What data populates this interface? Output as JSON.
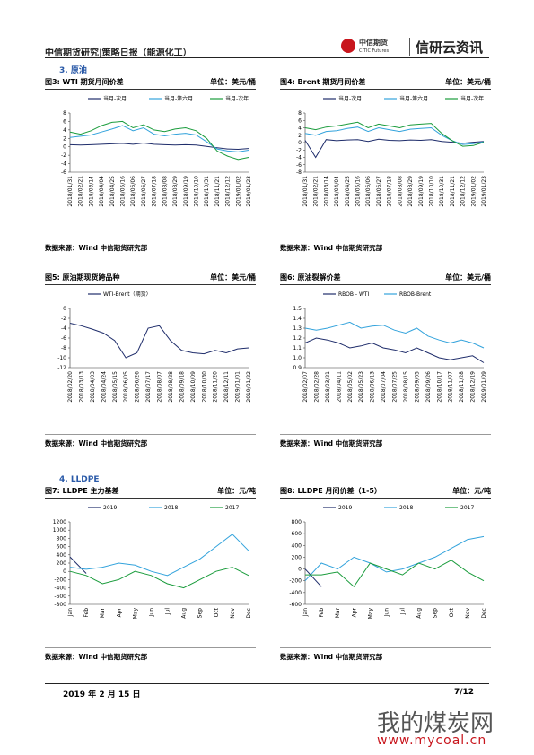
{
  "header": {
    "title": "中信期货研究|策略日报（能源化工）",
    "logo_cn": "中信期货",
    "logo_en": "CITIC Futures",
    "brand": "信研云资讯"
  },
  "sections": [
    "3. 原油",
    "4. LLDPE"
  ],
  "chart_data": [
    {
      "type": "line",
      "title": "图3: WTI 期货月间价差",
      "unit": "单位：美元/桶",
      "source": "数据来源：Wind 中信期货研究部",
      "categories": [
        "2018/01/31",
        "2018/02/21",
        "2018/03/14",
        "2018/04/04",
        "2018/04/25",
        "2018/05/16",
        "2018/06/06",
        "2018/06/27",
        "2018/07/18",
        "2018/08/08",
        "2018/08/29",
        "2018/09/19",
        "2018/10/10",
        "2018/10/31",
        "2018/11/21",
        "2018/12/12",
        "2019/01/02",
        "2019/01/23"
      ],
      "series": [
        {
          "name": "当月-次月",
          "color": "#1f2d6b",
          "values": [
            0.5,
            0.4,
            0.5,
            0.6,
            0.7,
            0.8,
            0.6,
            0.9,
            0.6,
            0.5,
            0.4,
            0.5,
            0.4,
            0.1,
            -0.2,
            -0.5,
            -0.6,
            -0.4
          ]
        },
        {
          "name": "当月-第六月",
          "color": "#33a3dc",
          "values": [
            2.2,
            2.5,
            2.8,
            3.5,
            4.2,
            5.0,
            3.8,
            4.5,
            3.0,
            2.6,
            3.0,
            3.2,
            2.8,
            1.2,
            -0.5,
            -1.0,
            -1.2,
            -0.8
          ]
        },
        {
          "name": "当月-次年",
          "color": "#1a9c3c",
          "values": [
            3.5,
            3.0,
            3.8,
            5.0,
            5.8,
            6.0,
            4.5,
            5.2,
            4.0,
            3.6,
            4.2,
            4.5,
            3.8,
            2.0,
            -1.0,
            -2.2,
            -3.0,
            -2.5
          ]
        }
      ],
      "ylim": [
        -6,
        8
      ],
      "yticks": [
        -6,
        -4,
        -2,
        0,
        2,
        4,
        6,
        8
      ]
    },
    {
      "type": "line",
      "title": "图4: Brent 期货月间价差",
      "unit": "单位：美元/桶",
      "source": "数据来源：Wind 中信期货研究部",
      "categories": [
        "2018/01/31",
        "2018/02/21",
        "2018/03/14",
        "2018/04/04",
        "2018/04/25",
        "2018/05/16",
        "2018/06/06",
        "2018/06/27",
        "2018/07/18",
        "2018/08/08",
        "2018/08/29",
        "2018/09/19",
        "2018/10/10",
        "2018/10/31",
        "2018/11/21",
        "2018/12/12",
        "2019/01/02",
        "2019/01/23"
      ],
      "series": [
        {
          "name": "当月-次月",
          "color": "#1f2d6b",
          "values": [
            0.6,
            -4.0,
            0.8,
            0.5,
            0.7,
            0.8,
            0.3,
            0.9,
            0.6,
            0.5,
            0.7,
            0.6,
            0.8,
            0.3,
            0.1,
            -0.2,
            0.1,
            0.3
          ]
        },
        {
          "name": "当月-第六月",
          "color": "#33a3dc",
          "values": [
            2.5,
            2.0,
            3.0,
            3.2,
            3.8,
            4.2,
            3.0,
            4.0,
            3.5,
            3.0,
            3.6,
            3.8,
            4.0,
            2.0,
            0.5,
            -0.5,
            -0.3,
            0.2
          ]
        },
        {
          "name": "当月-次年",
          "color": "#1a9c3c",
          "values": [
            4.0,
            3.5,
            4.2,
            4.5,
            5.0,
            5.5,
            4.0,
            5.0,
            4.5,
            4.0,
            4.8,
            5.0,
            5.2,
            2.5,
            0.5,
            -1.0,
            -0.8,
            0.1
          ]
        }
      ],
      "ylim": [
        -8,
        8
      ],
      "yticks": [
        -8,
        -6,
        -4,
        -2,
        0,
        2,
        4,
        6,
        8
      ]
    },
    {
      "type": "line",
      "title": "图5: 原油期现货跨品种",
      "unit": "单位：美元/桶",
      "source": "数据来源：Wind 中信期货研究部",
      "categories": [
        "2018/02/20",
        "2018/03/13",
        "2018/04/03",
        "2018/04/24",
        "2018/05/15",
        "2018/06/05",
        "2018/06/26",
        "2018/07/17",
        "2018/08/07",
        "2018/08/28",
        "2018/09/18",
        "2018/10/09",
        "2018/10/30",
        "2018/11/20",
        "2018/12/11",
        "2019/01/01",
        "2019/01/22"
      ],
      "series": [
        {
          "name": "WTI-Brent（期货）",
          "color": "#1f2d6b",
          "values": [
            -3,
            -3.5,
            -4.2,
            -5,
            -6.5,
            -10,
            -9,
            -4,
            -3.5,
            -6.5,
            -8.5,
            -9,
            -9.2,
            -8.5,
            -9,
            -8.2,
            -8
          ]
        }
      ],
      "ylim": [
        -12,
        0
      ],
      "yticks": [
        -12,
        -10,
        -8,
        -6,
        -4,
        -2,
        0
      ]
    },
    {
      "type": "line",
      "title": "图6: 原油裂解价差",
      "unit": "单位：美元/桶",
      "source": "数据来源：Wind 中信期货研究部",
      "categories": [
        "2018/02/07",
        "2018/02/28",
        "2018/03/21",
        "2018/04/11",
        "2018/05/02",
        "2018/05/23",
        "2018/06/13",
        "2018/07/04",
        "2018/07/25",
        "2018/08/15",
        "2018/09/05",
        "2018/09/26",
        "2018/10/17",
        "2018/11/07",
        "2018/11/28",
        "2018/12/19",
        "2019/01/09"
      ],
      "series": [
        {
          "name": "RBOB - WTI",
          "color": "#1f2d6b",
          "values": [
            1.15,
            1.2,
            1.18,
            1.15,
            1.1,
            1.12,
            1.15,
            1.1,
            1.08,
            1.05,
            1.1,
            1.05,
            1.0,
            0.98,
            1.0,
            1.02,
            0.95
          ]
        },
        {
          "name": "RBOB-Brent",
          "color": "#33a3dc",
          "values": [
            1.3,
            1.28,
            1.3,
            1.33,
            1.36,
            1.3,
            1.32,
            1.33,
            1.28,
            1.25,
            1.3,
            1.22,
            1.18,
            1.15,
            1.18,
            1.15,
            1.1
          ]
        }
      ],
      "ylim": [
        0.9,
        1.5
      ],
      "yticks": [
        0.9,
        {
          "value": 1,
          "label": "1.0"
        },
        1.1,
        1.2,
        1.3,
        1.4,
        1.5
      ]
    },
    {
      "type": "line",
      "title": "图7: LLDPE 主力基差",
      "unit": "单位：元/吨",
      "source": "数据来源：Wind 中信期货研究部",
      "categories": [
        "Jan",
        "Feb",
        "Mar",
        "Apr",
        "May",
        "Jun",
        "Jul",
        "Aug",
        "Sep",
        "Oct",
        "Nov",
        "Dec"
      ],
      "series": [
        {
          "name": "2019",
          "color": "#1f2d6b",
          "values": [
            350,
            -50,
            null,
            null,
            null,
            null,
            null,
            null,
            null,
            null,
            null,
            null
          ]
        },
        {
          "name": "2018",
          "color": "#33a3dc",
          "values": [
            100,
            50,
            100,
            200,
            150,
            0,
            -100,
            100,
            300,
            600,
            900,
            500
          ]
        },
        {
          "name": "2017",
          "color": "#1a9c3c",
          "values": [
            0,
            -100,
            -300,
            -200,
            0,
            -100,
            -300,
            -400,
            -200,
            0,
            100,
            -100
          ]
        }
      ],
      "ylim": [
        -800,
        1200
      ],
      "yticks": [
        -800,
        -600,
        -400,
        -200,
        0,
        200,
        400,
        600,
        800,
        1000,
        1200
      ]
    },
    {
      "type": "line",
      "title": "图8: LLDPE 月间价差（1-5）",
      "unit": "单位：元/吨",
      "source": "数据来源：Wind 中信期货研究部",
      "categories": [
        "Jan",
        "Feb",
        "Mar",
        "Apr",
        "May",
        "Jun",
        "Jul",
        "Aug",
        "Sep",
        "Oct",
        "Nov",
        "Dec"
      ],
      "series": [
        {
          "name": "2019",
          "color": "#1f2d6b",
          "values": [
            0,
            -300,
            null,
            null,
            null,
            null,
            null,
            null,
            null,
            null,
            null,
            null
          ]
        },
        {
          "name": "2018",
          "color": "#33a3dc",
          "values": [
            -200,
            100,
            0,
            200,
            100,
            -50,
            0,
            100,
            200,
            350,
            500,
            550
          ]
        },
        {
          "name": "2017",
          "color": "#1a9c3c",
          "values": [
            -100,
            -100,
            -50,
            -300,
            100,
            0,
            -100,
            100,
            0,
            150,
            -50,
            -200
          ]
        }
      ],
      "ylim": [
        -600,
        800
      ],
      "yticks": [
        -600,
        -400,
        -200,
        0,
        200,
        400,
        600,
        800
      ]
    }
  ],
  "footer": {
    "date": "2019 年 2 月 15 日",
    "page": "7/12"
  },
  "watermark": {
    "name": "我的煤炭网",
    "url": "www.mycoal.cn"
  }
}
